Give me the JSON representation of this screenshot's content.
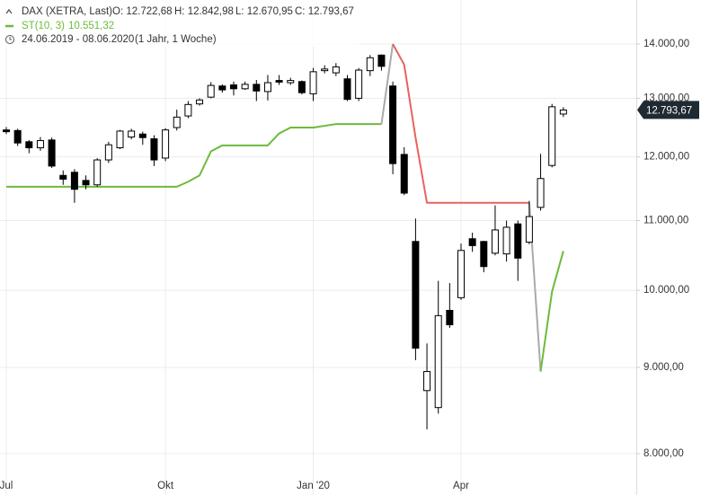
{
  "chart_data": {
    "type": "candlestick",
    "header": {
      "instrument": "DAX (XETRA, Last)",
      "ohlc_labels": [
        "O: 12.722,68",
        "H: 12.842,98",
        "L: 12.670,95",
        "C: 12.793,67"
      ],
      "period": "24.06.2019 - 08.06.2020",
      "period_note": "(1 Jahr, 1 Woche)"
    },
    "categories": [
      "Jul",
      null,
      null,
      null,
      null,
      null,
      null,
      null,
      null,
      null,
      null,
      null,
      null,
      null,
      "Okt",
      null,
      null,
      null,
      null,
      null,
      null,
      null,
      null,
      null,
      null,
      null,
      null,
      "Jan '20",
      null,
      null,
      null,
      null,
      null,
      null,
      null,
      null,
      null,
      null,
      null,
      null,
      "Apr",
      null,
      null,
      null,
      null,
      null,
      null,
      null,
      null,
      null
    ],
    "series": [
      {
        "name": "DAX (XETRA, Last)",
        "up_color": "#ffffff",
        "down_color": "#000000",
        "open": [
          12450,
          12440,
          12250,
          12150,
          12280,
          11700,
          11750,
          11620,
          11550,
          11950,
          12150,
          12330,
          12380,
          12300,
          11980,
          12490,
          12690,
          12900,
          13020,
          13220,
          13240,
          13170,
          13250,
          13120,
          13320,
          13280,
          13300,
          13080,
          13500,
          13460,
          13350,
          13000,
          13500,
          13790,
          13220,
          12040,
          10690,
          8720,
          8520,
          9730,
          9900,
          10730,
          10690,
          10520,
          10510,
          10950,
          10680,
          11200,
          11860,
          12722.68
        ],
        "high": [
          12500,
          12470,
          12280,
          12330,
          12320,
          11780,
          11800,
          11700,
          11980,
          12250,
          12450,
          12470,
          12420,
          12360,
          12480,
          12800,
          12950,
          13000,
          13290,
          13250,
          13300,
          13300,
          13330,
          13420,
          13420,
          13370,
          13320,
          13550,
          13600,
          13640,
          13420,
          13550,
          13790,
          13800,
          13300,
          12160,
          11030,
          9300,
          10130,
          10100,
          10660,
          10820,
          10700,
          11230,
          11000,
          11000,
          11300,
          12050,
          12900,
          12842.98
        ],
        "low": [
          12380,
          12180,
          12060,
          12100,
          11820,
          11550,
          11270,
          11480,
          11520,
          11900,
          12130,
          12290,
          12200,
          11850,
          11930,
          12440,
          12650,
          12870,
          13000,
          13100,
          13050,
          13150,
          12950,
          12960,
          13240,
          13240,
          13070,
          12950,
          13450,
          13400,
          12950,
          12950,
          13400,
          13500,
          11720,
          11390,
          9090,
          8270,
          8450,
          9500,
          9870,
          10540,
          10250,
          10490,
          10400,
          10130,
          10650,
          11150,
          11830,
          12670.95
        ],
        "close": [
          12420,
          12230,
          12150,
          12270,
          11850,
          11640,
          11480,
          11550,
          11950,
          12200,
          12430,
          12430,
          12320,
          11950,
          12450,
          12670,
          12890,
          12970,
          13230,
          13150,
          13170,
          13250,
          13130,
          13280,
          13290,
          13320,
          13100,
          13480,
          13530,
          13570,
          12980,
          13510,
          13740,
          13580,
          11890,
          11420,
          9240,
          8950,
          9660,
          9540,
          10560,
          10630,
          10330,
          10860,
          10900,
          10450,
          11060,
          11650,
          12850,
          12793.67
        ]
      }
    ],
    "indicator": {
      "name": "ST(10, 3)",
      "value_label": "10.551,32",
      "switch_color": "#aaaaaa",
      "values": [
        11520,
        11520,
        11520,
        11520,
        11520,
        11520,
        11520,
        11520,
        11520,
        11520,
        11520,
        11520,
        11520,
        11520,
        11520,
        11520,
        11600,
        11700,
        12090,
        12190,
        12190,
        12190,
        12190,
        12190,
        12390,
        12490,
        12490,
        12490,
        12520,
        12550,
        12550,
        12550,
        12550,
        12550,
        14000,
        13610,
        12320,
        11270,
        11270,
        11270,
        11270,
        11270,
        11270,
        11270,
        11270,
        11270,
        11270,
        8950,
        9980,
        10551.32
      ],
      "colors": [
        "#6cbb3c",
        "#6cbb3c",
        "#6cbb3c",
        "#6cbb3c",
        "#6cbb3c",
        "#6cbb3c",
        "#6cbb3c",
        "#6cbb3c",
        "#6cbb3c",
        "#6cbb3c",
        "#6cbb3c",
        "#6cbb3c",
        "#6cbb3c",
        "#6cbb3c",
        "#6cbb3c",
        "#6cbb3c",
        "#6cbb3c",
        "#6cbb3c",
        "#6cbb3c",
        "#6cbb3c",
        "#6cbb3c",
        "#6cbb3c",
        "#6cbb3c",
        "#6cbb3c",
        "#6cbb3c",
        "#6cbb3c",
        "#6cbb3c",
        "#6cbb3c",
        "#6cbb3c",
        "#6cbb3c",
        "#6cbb3c",
        "#6cbb3c",
        "#6cbb3c",
        "#6cbb3c",
        "#e8625f",
        "#e8625f",
        "#e8625f",
        "#e8625f",
        "#e8625f",
        "#e8625f",
        "#e8625f",
        "#e8625f",
        "#e8625f",
        "#e8625f",
        "#e8625f",
        "#e8625f",
        "#e8625f",
        "#6cbb3c",
        "#6cbb3c",
        "#6cbb3c"
      ]
    },
    "last_price": {
      "value": 12793.67,
      "label": "12.793,67"
    },
    "ylim": [
      7806,
      14868
    ],
    "log_scale": true,
    "grid": true,
    "yticks": [
      {
        "value": 14000,
        "label": "14.000,00"
      },
      {
        "value": 13000,
        "label": "13.000,00"
      },
      {
        "value": 12000,
        "label": "12.000,00"
      },
      {
        "value": 11000,
        "label": "11.000,00"
      },
      {
        "value": 10000,
        "label": "10.000,00"
      },
      {
        "value": 9000,
        "label": "9.000,00"
      },
      {
        "value": 8000,
        "label": "8.000,00"
      }
    ]
  }
}
